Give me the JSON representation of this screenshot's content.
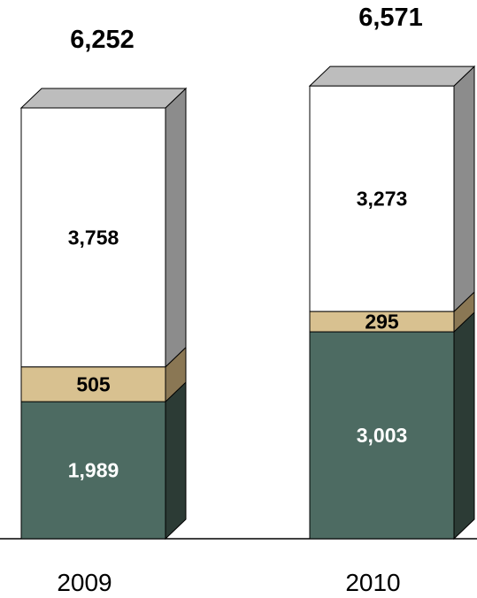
{
  "chart_data": {
    "type": "bar",
    "stacked": true,
    "three_d": true,
    "categories": [
      "2009",
      "2010"
    ],
    "totals": [
      "6,252",
      "6,571"
    ],
    "series": [
      {
        "values": [
          1989,
          3003
        ],
        "labels": [
          "1,989",
          "3,003"
        ],
        "color": "#4d6b62",
        "side_color": "#2c3b35",
        "label_color": "#ffffff"
      },
      {
        "values": [
          505,
          295
        ],
        "labels": [
          "505",
          "295"
        ],
        "color": "#d8c190",
        "side_color": "#8a7754",
        "label_color": "#000000"
      },
      {
        "values": [
          3758,
          3273
        ],
        "labels": [
          "3,758",
          "3,273"
        ],
        "color": "#ffffff",
        "side_color": "#8c8c8c",
        "top_color": "#bdbdbd",
        "label_color": "#000000"
      }
    ],
    "legend": "none",
    "grid": false
  }
}
